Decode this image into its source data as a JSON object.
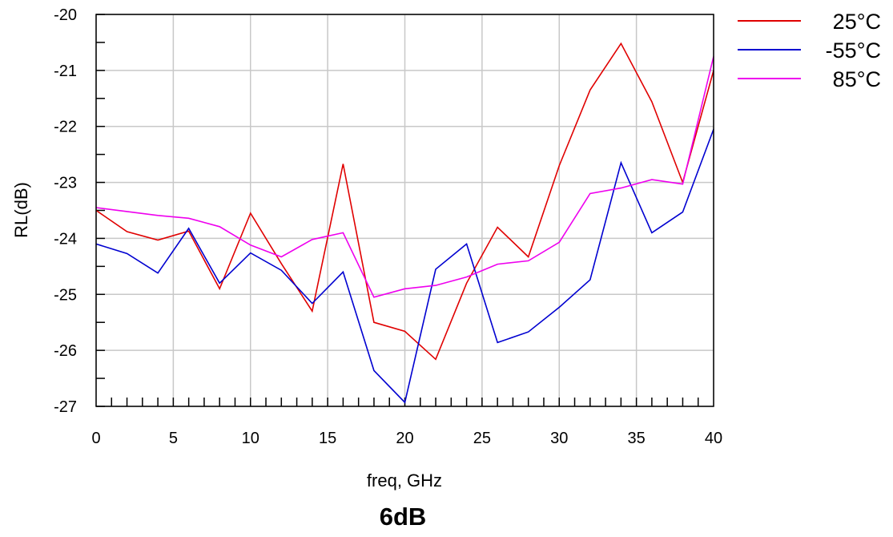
{
  "chart_data": {
    "type": "line",
    "title": "6dB",
    "xlabel": "freq, GHz",
    "ylabel": "RL(dB)",
    "xlim": [
      0,
      40
    ],
    "ylim": [
      -27,
      -20
    ],
    "xticks": [
      0,
      5,
      10,
      15,
      20,
      25,
      30,
      35,
      40
    ],
    "yticks": [
      -27,
      -26,
      -25,
      -24,
      -23,
      -22,
      -21,
      -20
    ],
    "grid": true,
    "legend_position": "top-right, outside plot",
    "x": [
      0,
      2,
      4,
      6,
      8,
      10,
      12,
      14,
      16,
      18,
      20,
      22,
      24,
      26,
      28,
      30,
      32,
      34,
      36,
      38,
      40
    ],
    "series": [
      {
        "name": "25°C",
        "color": "#e00000",
        "values": [
          -23.5,
          -23.88,
          -24.03,
          -23.87,
          -24.9,
          -23.55,
          -24.45,
          -25.3,
          -22.67,
          -25.5,
          -25.66,
          -26.16,
          -24.8,
          -23.8,
          -24.33,
          -22.7,
          -21.35,
          -20.52,
          -21.56,
          -23.0,
          -21.0
        ]
      },
      {
        "name": "-55°C",
        "color": "#0000d0",
        "values": [
          -24.1,
          -24.27,
          -24.62,
          -23.82,
          -24.8,
          -24.26,
          -24.57,
          -25.16,
          -24.6,
          -26.36,
          -26.93,
          -24.55,
          -24.1,
          -25.86,
          -25.67,
          -25.23,
          -24.74,
          -22.65,
          -23.9,
          -23.53,
          -22.05
        ]
      },
      {
        "name": "85°C",
        "color": "#ee00ee",
        "values": [
          -23.45,
          -23.52,
          -23.59,
          -23.64,
          -23.79,
          -24.12,
          -24.33,
          -24.02,
          -23.9,
          -25.05,
          -24.9,
          -24.84,
          -24.69,
          -24.46,
          -24.4,
          -24.07,
          -23.2,
          -23.1,
          -22.95,
          -23.03,
          -20.75
        ]
      }
    ]
  }
}
